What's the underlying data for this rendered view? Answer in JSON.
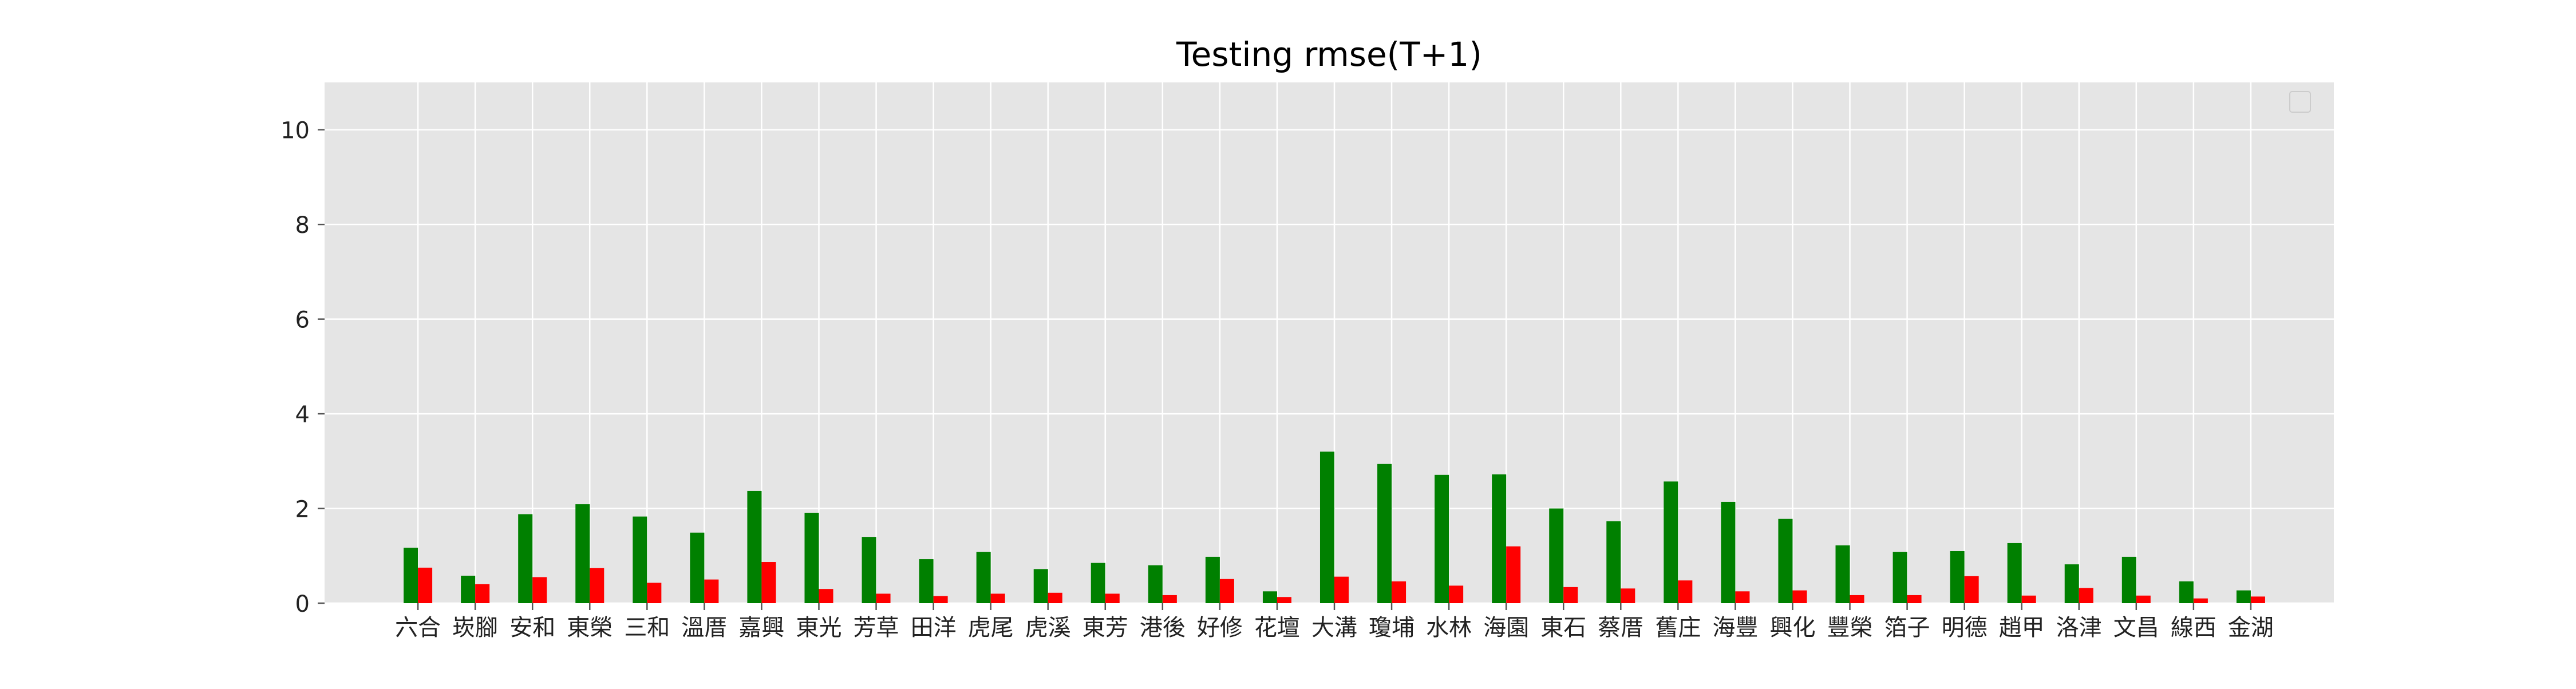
{
  "chart_data": {
    "type": "bar",
    "title": "Testing rmse(T+1)",
    "xlabel": "",
    "ylabel": "",
    "ylim": [
      0,
      11
    ],
    "yticks": [
      0,
      2,
      4,
      6,
      8,
      10
    ],
    "grid": true,
    "legend": "top-right",
    "categories": [
      "六合",
      "崁腳",
      "安和",
      "東榮",
      "三和",
      "溫厝",
      "嘉興",
      "東光",
      "芳草",
      "田洋",
      "虎尾",
      "虎溪",
      "東芳",
      "港後",
      "好修",
      "花壇",
      "大溝",
      "瓊埔",
      "水林",
      "海園",
      "東石",
      "蔡厝",
      "舊庄",
      "海豐",
      "興化",
      "豐榮",
      "箔子",
      "明德",
      "趙甲",
      "洛津",
      "文昌",
      "線西",
      "金湖"
    ],
    "series": [
      {
        "color": "#008000",
        "values": [
          1.17,
          0.58,
          1.88,
          2.09,
          1.83,
          1.49,
          2.37,
          1.91,
          1.4,
          0.93,
          1.08,
          0.72,
          0.85,
          0.8,
          0.98,
          0.25,
          3.2,
          2.94,
          2.71,
          2.72,
          2.0,
          1.73,
          2.57,
          2.14,
          1.78,
          1.22,
          1.08,
          1.1,
          1.27,
          0.82,
          0.98,
          0.46,
          0.27
        ]
      },
      {
        "color": "#ff0000",
        "values": [
          0.75,
          0.4,
          0.55,
          0.74,
          0.43,
          0.5,
          0.87,
          0.3,
          0.2,
          0.15,
          0.2,
          0.22,
          0.2,
          0.17,
          0.51,
          0.13,
          0.56,
          0.46,
          0.37,
          1.2,
          0.34,
          0.31,
          0.48,
          0.25,
          0.27,
          0.17,
          0.17,
          0.57,
          0.16,
          0.32,
          0.16,
          0.1,
          0.14
        ]
      }
    ]
  }
}
